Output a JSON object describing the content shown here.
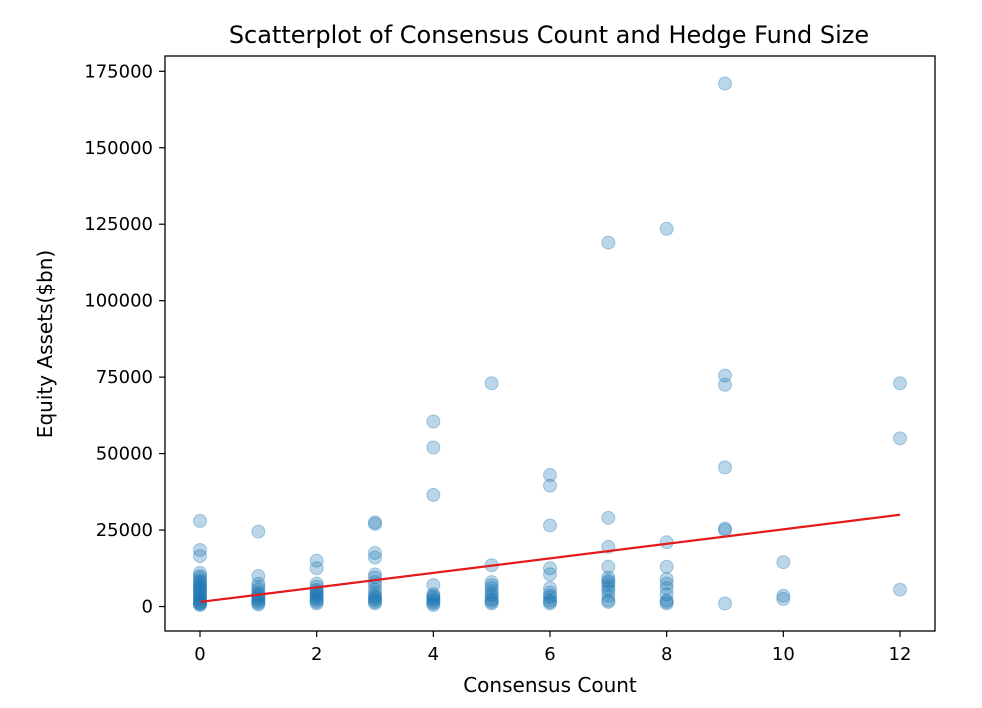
{
  "chart_data": {
    "type": "scatter",
    "title": "Scatterplot of Consensus Count and Hedge Fund Size",
    "xlabel": "Consensus Count",
    "ylabel": "Equity Assets($bn)",
    "xlim": [
      -0.6,
      12.6
    ],
    "ylim": [
      -8000,
      180000
    ],
    "xticks": [
      0,
      2,
      4,
      6,
      8,
      10,
      12
    ],
    "yticks": [
      0,
      25000,
      50000,
      75000,
      100000,
      125000,
      150000,
      175000
    ],
    "grid": false,
    "legend": "none",
    "point_color": "#1f77b4",
    "line_color": "#e41a1c",
    "series": [
      {
        "type": "scatter",
        "points": [
          [
            0,
            28000
          ],
          [
            0,
            18500
          ],
          [
            0,
            16500
          ],
          [
            0,
            11000
          ],
          [
            0,
            10000
          ],
          [
            0,
            9500
          ],
          [
            0,
            8500
          ],
          [
            0,
            8000
          ],
          [
            0,
            7500
          ],
          [
            0,
            7000
          ],
          [
            0,
            6500
          ],
          [
            0,
            6000
          ],
          [
            0,
            5500
          ],
          [
            0,
            5000
          ],
          [
            0,
            4500
          ],
          [
            0,
            4000
          ],
          [
            0,
            3500
          ],
          [
            0,
            3000
          ],
          [
            0,
            2500
          ],
          [
            0,
            2000
          ],
          [
            0,
            1500
          ],
          [
            0,
            1200
          ],
          [
            0,
            1000
          ],
          [
            0,
            800
          ],
          [
            0,
            500
          ],
          [
            1,
            24500
          ],
          [
            1,
            10000
          ],
          [
            1,
            7500
          ],
          [
            1,
            6500
          ],
          [
            1,
            5500
          ],
          [
            1,
            4500
          ],
          [
            1,
            4000
          ],
          [
            1,
            3500
          ],
          [
            1,
            3000
          ],
          [
            1,
            2500
          ],
          [
            1,
            2000
          ],
          [
            1,
            1500
          ],
          [
            1,
            1000
          ],
          [
            1,
            700
          ],
          [
            2,
            15000
          ],
          [
            2,
            12500
          ],
          [
            2,
            7500
          ],
          [
            2,
            6500
          ],
          [
            2,
            5500
          ],
          [
            2,
            5000
          ],
          [
            2,
            4500
          ],
          [
            2,
            4000
          ],
          [
            2,
            3500
          ],
          [
            2,
            3000
          ],
          [
            2,
            2500
          ],
          [
            2,
            2000
          ],
          [
            2,
            1500
          ],
          [
            2,
            1000
          ],
          [
            3,
            27500
          ],
          [
            3,
            27000
          ],
          [
            3,
            17500
          ],
          [
            3,
            16000
          ],
          [
            3,
            10500
          ],
          [
            3,
            9500
          ],
          [
            3,
            8000
          ],
          [
            3,
            7000
          ],
          [
            3,
            5500
          ],
          [
            3,
            4500
          ],
          [
            3,
            3500
          ],
          [
            3,
            3000
          ],
          [
            3,
            2500
          ],
          [
            3,
            2000
          ],
          [
            3,
            1500
          ],
          [
            3,
            1000
          ],
          [
            4,
            60500
          ],
          [
            4,
            52000
          ],
          [
            4,
            36500
          ],
          [
            4,
            7000
          ],
          [
            4,
            4000
          ],
          [
            4,
            3500
          ],
          [
            4,
            3000
          ],
          [
            4,
            2500
          ],
          [
            4,
            2000
          ],
          [
            4,
            1500
          ],
          [
            4,
            1000
          ],
          [
            4,
            500
          ],
          [
            5,
            73000
          ],
          [
            5,
            13500
          ],
          [
            5,
            8000
          ],
          [
            5,
            7000
          ],
          [
            5,
            6000
          ],
          [
            5,
            5000
          ],
          [
            5,
            4000
          ],
          [
            5,
            3500
          ],
          [
            5,
            2500
          ],
          [
            5,
            2000
          ],
          [
            5,
            1500
          ],
          [
            5,
            1000
          ],
          [
            6,
            43000
          ],
          [
            6,
            39500
          ],
          [
            6,
            26500
          ],
          [
            6,
            12500
          ],
          [
            6,
            10500
          ],
          [
            6,
            6000
          ],
          [
            6,
            4500
          ],
          [
            6,
            3500
          ],
          [
            6,
            3000
          ],
          [
            6,
            2000
          ],
          [
            6,
            1500
          ],
          [
            6,
            1000
          ],
          [
            7,
            119000
          ],
          [
            7,
            29000
          ],
          [
            7,
            19500
          ],
          [
            7,
            13000
          ],
          [
            7,
            9500
          ],
          [
            7,
            8500
          ],
          [
            7,
            8000
          ],
          [
            7,
            7000
          ],
          [
            7,
            6000
          ],
          [
            7,
            5000
          ],
          [
            7,
            3500
          ],
          [
            7,
            2000
          ],
          [
            7,
            1500
          ],
          [
            8,
            123500
          ],
          [
            8,
            21000
          ],
          [
            8,
            13000
          ],
          [
            8,
            9000
          ],
          [
            8,
            7500
          ],
          [
            8,
            6000
          ],
          [
            8,
            4000
          ],
          [
            8,
            2000
          ],
          [
            8,
            1500
          ],
          [
            8,
            1000
          ],
          [
            9,
            171000
          ],
          [
            9,
            75500
          ],
          [
            9,
            72500
          ],
          [
            9,
            45500
          ],
          [
            9,
            25500
          ],
          [
            9,
            25000
          ],
          [
            9,
            1000
          ],
          [
            10,
            14500
          ],
          [
            10,
            3500
          ],
          [
            10,
            2500
          ],
          [
            12,
            73000
          ],
          [
            12,
            55000
          ],
          [
            12,
            5500
          ]
        ]
      },
      {
        "type": "line",
        "points": [
          [
            0,
            1500
          ],
          [
            12,
            30000
          ]
        ]
      }
    ]
  }
}
